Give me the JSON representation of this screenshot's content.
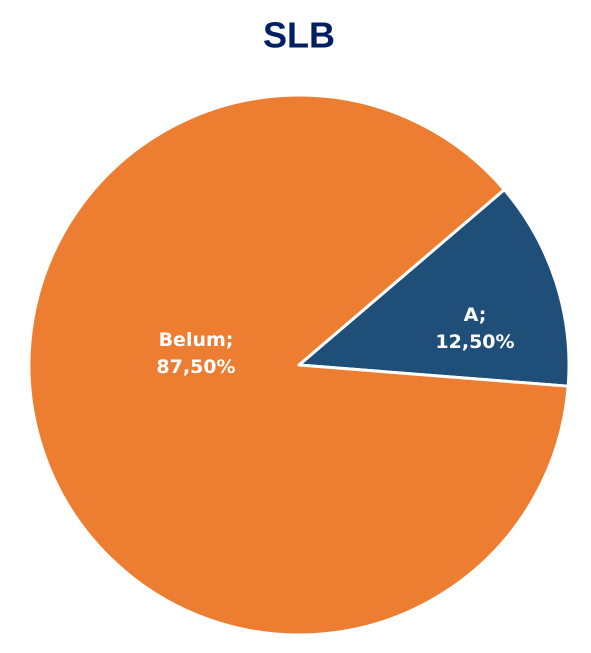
{
  "chart_data": {
    "type": "pie",
    "title": "SLB",
    "categories": [
      "A",
      "Belum"
    ],
    "values": [
      12.5,
      87.5
    ],
    "value_labels": [
      "12,50%",
      "87,50%"
    ],
    "separator": ";",
    "colors": [
      "#1f4e79",
      "#ed7d31"
    ]
  }
}
